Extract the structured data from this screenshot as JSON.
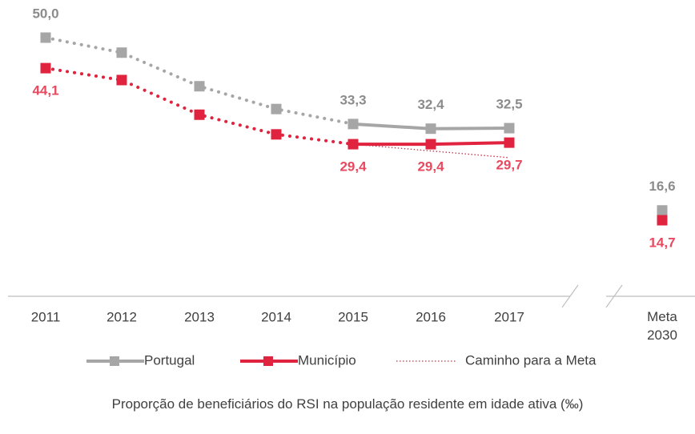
{
  "chart_data": {
    "type": "line",
    "title": "Proporção de beneficiários do RSI na população residente em idade ativa (‰)",
    "categories": [
      "2011",
      "2012",
      "2013",
      "2014",
      "2015",
      "2016",
      "2017",
      "Meta 2030"
    ],
    "ylim": [
      0,
      55
    ],
    "series": [
      {
        "name": "Portugal",
        "color": "#a6a6a6",
        "label_color": "#8c8c8c",
        "values": [
          50.0,
          47.1,
          40.6,
          36.2,
          33.3,
          32.4,
          32.5,
          16.6
        ],
        "value_labels": [
          "50,0",
          null,
          null,
          null,
          "33,3",
          "32,4",
          "32,5",
          "16,6"
        ]
      },
      {
        "name": "Município",
        "color": "#e0233e",
        "label_color": "#e8495f",
        "values": [
          44.1,
          41.8,
          35.1,
          31.3,
          29.4,
          29.4,
          29.7,
          14.7
        ],
        "value_labels": [
          "44,1",
          null,
          null,
          null,
          "29,4",
          "29,4",
          "29,7",
          "14,7"
        ]
      },
      {
        "name": "Caminho para a Meta",
        "color": "#e0233e",
        "values": [
          null,
          null,
          null,
          null,
          29.4,
          28.1,
          26.8,
          null
        ]
      }
    ]
  }
}
